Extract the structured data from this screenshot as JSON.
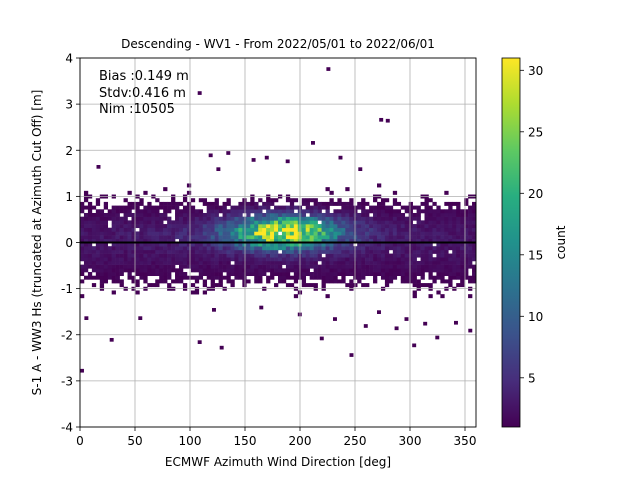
{
  "chart_data": {
    "type": "heatmap",
    "title": "Descending - WV1 - From 2022/05/01 to 2022/06/01",
    "xlabel": "ECMWF Azimuth Wind Direction [deg]",
    "ylabel": "S-1 A - WW3 Hs (truncated at Azimuth Cut Off) [m]",
    "xlim": [
      0,
      360
    ],
    "ylim": [
      -4,
      4
    ],
    "x_ticks": [
      "0",
      "50",
      "100",
      "150",
      "200",
      "250",
      "300",
      "350"
    ],
    "y_ticks": [
      "-4",
      "-3",
      "-2",
      "-1",
      "0",
      "1",
      "2",
      "3",
      "4"
    ],
    "grid": true,
    "zero_line": 0,
    "bin_width_x": 3.6,
    "bin_height_y": 0.08,
    "annotations": [
      "Bias :0.149 m",
      "Stdv:0.416 m",
      "Nim :10505"
    ],
    "colorbar": {
      "label": "count",
      "range": [
        1,
        31
      ],
      "ticks": [
        "5",
        "10",
        "15",
        "20",
        "25",
        "30"
      ],
      "colormap": "viridis"
    },
    "density_model": {
      "description": "approximate count density per bin",
      "peak_count": 30,
      "peak_x": 185,
      "peak_y": 0.22,
      "core_x_sigma": 40,
      "core_y_sigma": 0.3,
      "band_y_range": [
        -1.0,
        1.1
      ]
    },
    "outliers": [
      {
        "x": 224,
        "y": 3.72
      },
      {
        "x": 107,
        "y": 3.2
      },
      {
        "x": 272,
        "y": 2.62
      },
      {
        "x": 278,
        "y": 2.6
      },
      {
        "x": 210,
        "y": 2.12
      },
      {
        "x": 117,
        "y": 1.85
      },
      {
        "x": 133,
        "y": 1.9
      },
      {
        "x": 156,
        "y": 1.75
      },
      {
        "x": 168,
        "y": 1.8
      },
      {
        "x": 187,
        "y": 1.72
      },
      {
        "x": 235,
        "y": 1.8
      },
      {
        "x": 15,
        "y": 1.6
      },
      {
        "x": 124,
        "y": 1.55
      },
      {
        "x": 253,
        "y": 1.55
      },
      {
        "x": 0,
        "y": -2.82
      },
      {
        "x": 27,
        "y": -2.15
      },
      {
        "x": 107,
        "y": -2.2
      },
      {
        "x": 127,
        "y": -2.32
      },
      {
        "x": 218,
        "y": -2.12
      },
      {
        "x": 245,
        "y": -2.48
      },
      {
        "x": 302,
        "y": -2.27
      },
      {
        "x": 323,
        "y": -2.1
      },
      {
        "x": 353,
        "y": -1.95
      },
      {
        "x": 53,
        "y": -1.68
      },
      {
        "x": 4,
        "y": -1.68
      },
      {
        "x": 198,
        "y": -1.6
      },
      {
        "x": 230,
        "y": -1.7
      },
      {
        "x": 258,
        "y": -1.85
      },
      {
        "x": 286,
        "y": -1.9
      },
      {
        "x": 312,
        "y": -1.8
      },
      {
        "x": 340,
        "y": -1.78
      },
      {
        "x": 120,
        "y": -1.5
      },
      {
        "x": 163,
        "y": -1.45
      },
      {
        "x": 270,
        "y": -1.55
      },
      {
        "x": 295,
        "y": -1.7
      }
    ]
  }
}
